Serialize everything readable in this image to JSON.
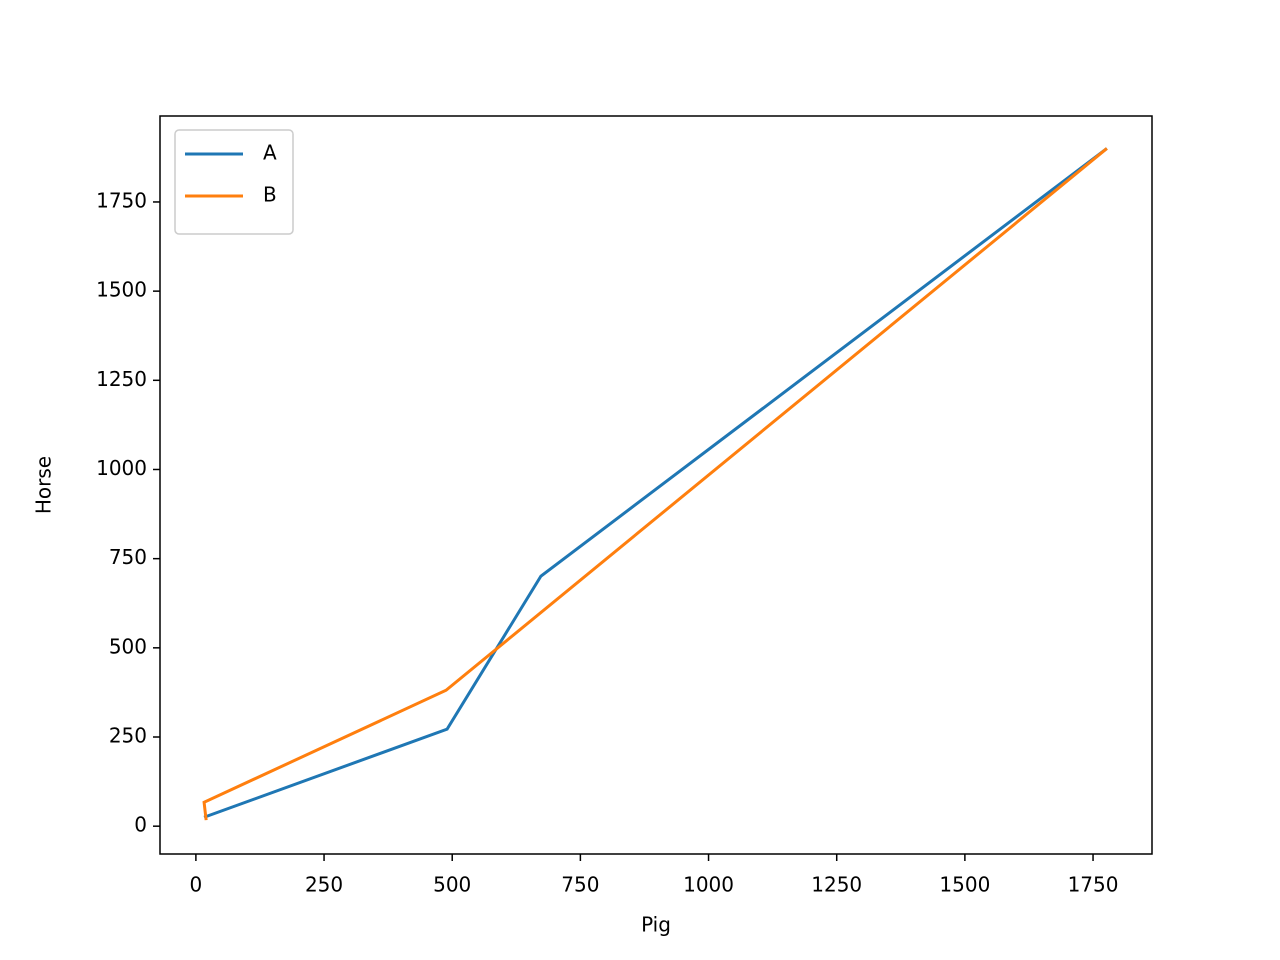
{
  "chart_data": {
    "type": "line",
    "xlabel": "Pig",
    "ylabel": "Horse",
    "series": [
      {
        "name": "A",
        "color": "#1f77b4",
        "x": [
          16,
          490,
          673,
          1777
        ],
        "values": [
          25,
          272,
          701,
          1900
        ]
      },
      {
        "name": "B",
        "color": "#ff7f0e",
        "x": [
          20,
          16,
          488,
          1777
        ],
        "values": [
          17,
          67,
          381,
          1900
        ]
      }
    ],
    "xlim": [
      -70,
      1865
    ],
    "ylim": [
      -78,
      1991
    ],
    "xticks": [
      0,
      250,
      500,
      750,
      1000,
      1250,
      1500,
      1750
    ],
    "yticks": [
      0,
      250,
      500,
      750,
      1000,
      1250,
      1500,
      1750
    ],
    "legend": "upper left",
    "grid": false
  }
}
